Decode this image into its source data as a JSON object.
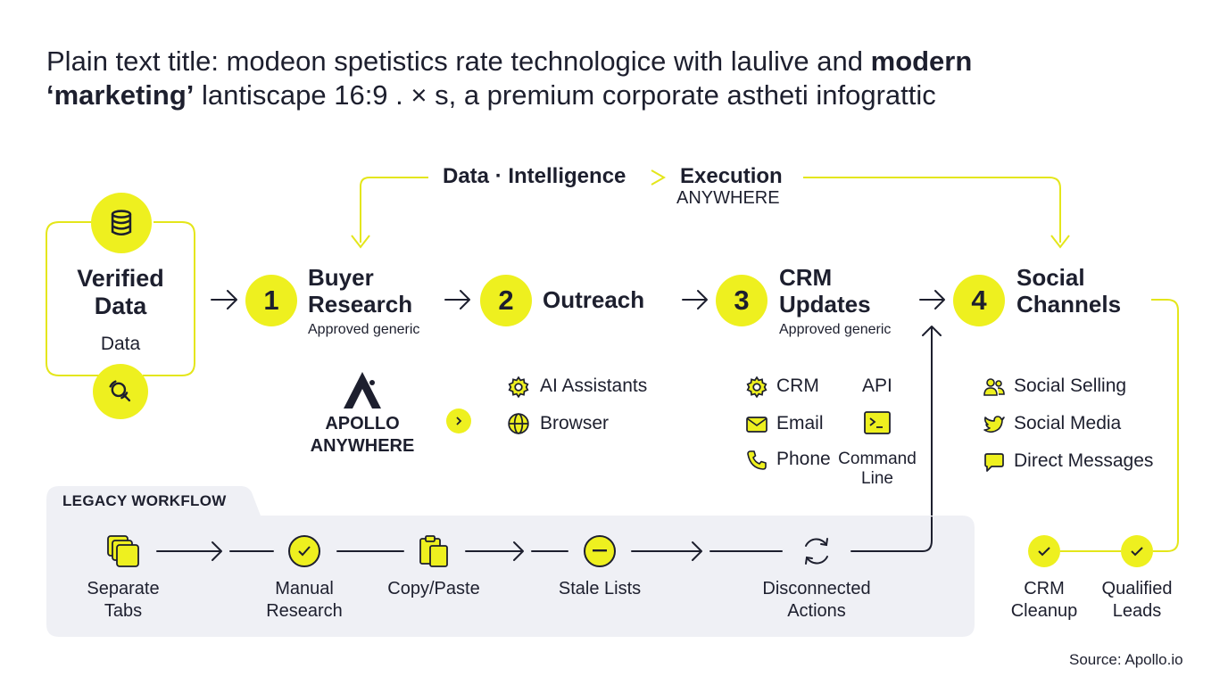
{
  "title": {
    "part1": "Plain text title: modeon spetistics rate technologice with laulive and ",
    "bold1": "modern",
    "bold2": "‘marketing’",
    "part2": " lantiscape 16:9 . × s, a premium corporate astheti infograttic"
  },
  "loop": {
    "label": "Data · Intelligence",
    "execution": "Execution",
    "anywhere": "ANYWHERE"
  },
  "source": {
    "title_line1": "Verified",
    "title_line2": "Data",
    "subtitle": "Data",
    "icons": [
      "database-icon",
      "search-scan-icon"
    ]
  },
  "stages": [
    {
      "number": "1",
      "line1": "Buyer",
      "line2": "Research",
      "sub": "Approved generic"
    },
    {
      "number": "2",
      "line1": "Outreach",
      "line2": "",
      "sub": ""
    },
    {
      "number": "3",
      "line1": "CRM",
      "line2": "Updates",
      "sub": "Approved generic"
    },
    {
      "number": "4",
      "line1": "Social",
      "line2": "Channels",
      "sub": ""
    }
  ],
  "apollo": {
    "line1": "APOLLO",
    "line2": "ANYWHERE"
  },
  "outreach_items": [
    {
      "label": "AI Assistants",
      "icon": "gear-icon"
    },
    {
      "label": "Browser",
      "icon": "globe-icon"
    }
  ],
  "crm_items": [
    {
      "label": "CRM",
      "icon": "gear-icon"
    },
    {
      "label": "Email",
      "icon": "mail-icon"
    },
    {
      "label": "Phone",
      "icon": "phone-icon"
    }
  ],
  "crm_items_right": [
    {
      "label": "API",
      "icon": ""
    },
    {
      "label": "Command\nLine",
      "icon": "terminal-icon"
    }
  ],
  "social_items": [
    {
      "label": "Social Selling",
      "icon": "users-icon"
    },
    {
      "label": "Social Media",
      "icon": "bird-icon"
    },
    {
      "label": "Direct Messages",
      "icon": "chat-icon"
    }
  ],
  "legacy": {
    "tab": "LEGACY WORKFLOW",
    "steps": [
      {
        "line1": "Separate",
        "line2": "Tabs",
        "icon": "tabs-icon"
      },
      {
        "line1": "Manual",
        "line2": "Research",
        "icon": "check-circle-icon"
      },
      {
        "line1": "Copy/Paste",
        "line2": "",
        "icon": "clipboard-icon"
      },
      {
        "line1": "Stale Lists",
        "line2": "",
        "icon": "minus-circle-icon"
      },
      {
        "line1": "Disconnected",
        "line2": "Actions",
        "icon": "refresh-icon"
      }
    ]
  },
  "outcomes": [
    {
      "line1": "CRM",
      "line2": "Cleanup",
      "icon": "check-icon"
    },
    {
      "line1": "Qualified",
      "line2": "Leads",
      "icon": "check-icon"
    }
  ],
  "footer": {
    "source": "Source: Apollo.io"
  },
  "colors": {
    "accent": "#eef01f",
    "text": "#1d1f2e",
    "panel": "#eff0f5"
  }
}
